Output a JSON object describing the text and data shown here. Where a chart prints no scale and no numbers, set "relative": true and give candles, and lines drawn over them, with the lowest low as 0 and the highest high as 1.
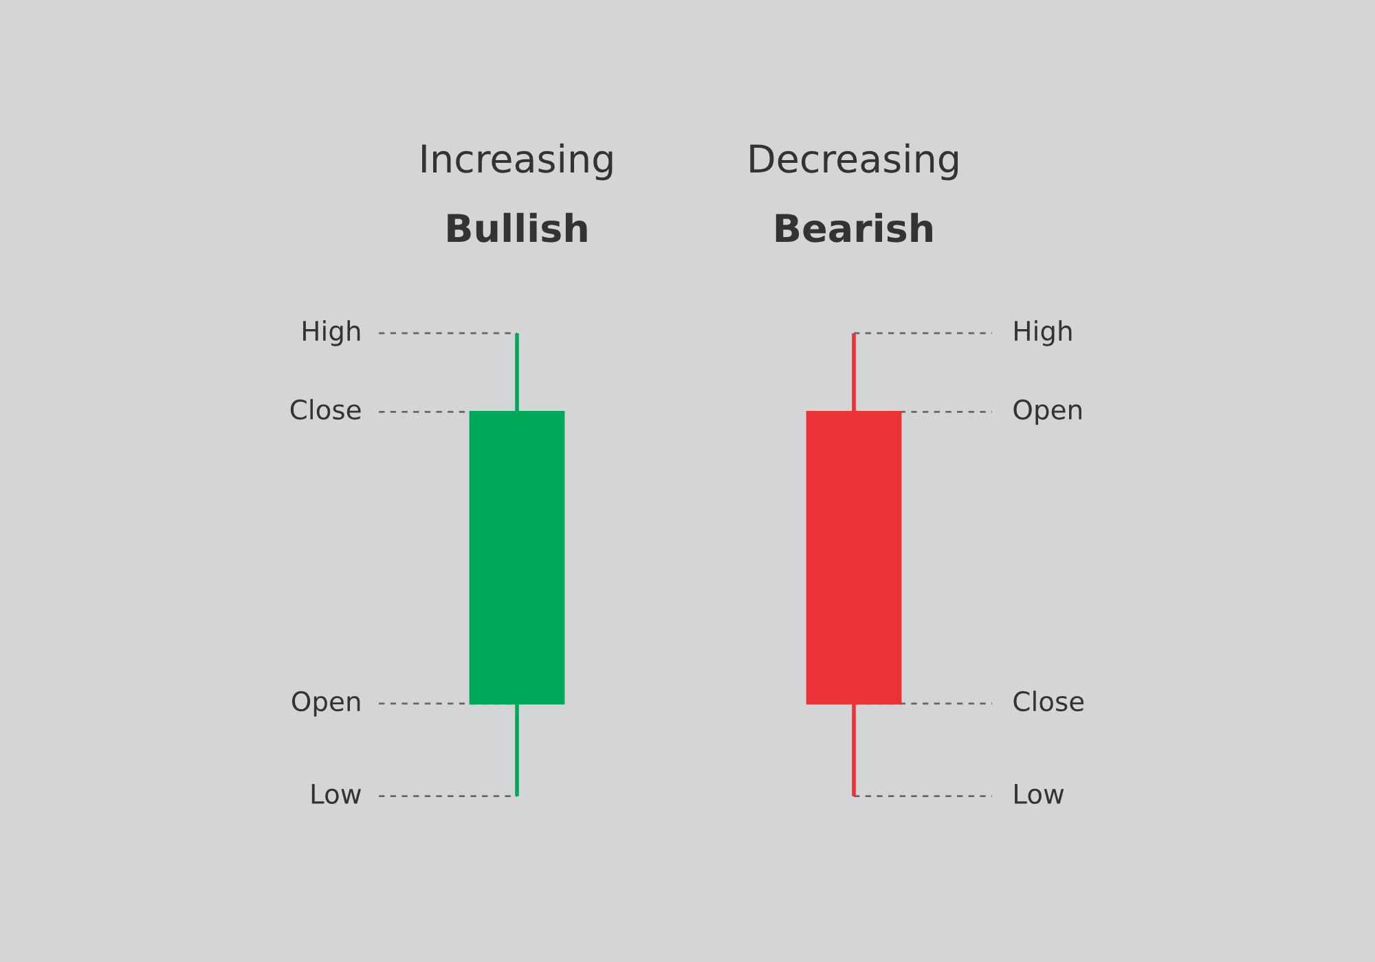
{
  "chart_data": {
    "type": "candlestick",
    "relative": true,
    "categories": [
      "Increasing",
      "Decreasing"
    ],
    "ohlc": [
      [
        0.2,
        1,
        0,
        0.83
      ],
      [
        0.83,
        1,
        0,
        0.2
      ]
    ],
    "colors": [
      "#00a859",
      "#ea3237"
    ],
    "annotations": [
      "Bullish",
      "Bearish",
      {
        "text": "High",
        "x": "Increasing",
        "y": 1
      },
      {
        "text": "Close",
        "x": "Increasing",
        "y": 0.83
      },
      {
        "text": "Open",
        "x": "Increasing",
        "y": 0.2
      },
      {
        "text": "Low",
        "x": "Increasing",
        "y": 0
      },
      {
        "text": "High",
        "x": "Decreasing",
        "y": 1
      },
      {
        "text": "Open",
        "x": "Decreasing",
        "y": 0.83
      },
      {
        "text": "Close",
        "x": "Decreasing",
        "y": 0.2
      },
      {
        "text": "Low",
        "x": "Decreasing",
        "y": 0
      }
    ]
  }
}
